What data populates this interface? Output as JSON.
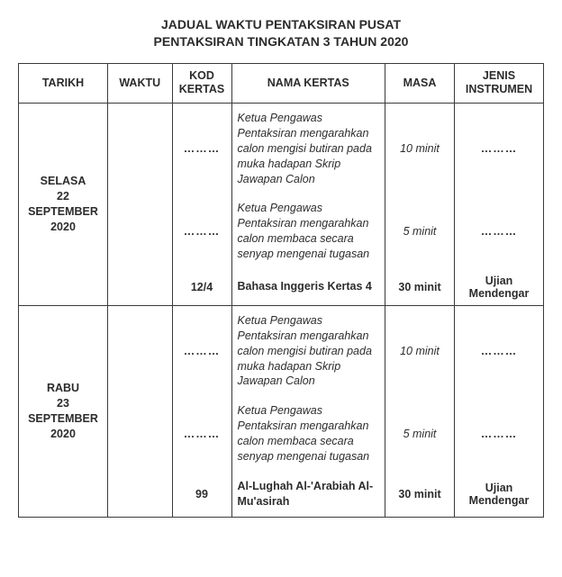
{
  "title_line1": "JADUAL WAKTU PENTAKSIRAN PUSAT",
  "title_line2": "PENTAKSIRAN TINGKATAN 3 TAHUN 2020",
  "headers": {
    "tarikh": "TARIKH",
    "waktu": "WAKTU",
    "kod": "KOD KERTAS",
    "nama": "NAMA KERTAS",
    "masa": "MASA",
    "jenis": "JENIS INSTRUMEN"
  },
  "dots": "………",
  "days": [
    {
      "tarikh": "SELASA\n22 SEPTEMBER\n2020",
      "rows": [
        {
          "kod": "………",
          "nama": "Ketua Pengawas Pentaksiran mengarahkan calon mengisi butiran pada muka hadapan Skrip Jawapan Calon",
          "masa": "10 minit",
          "jenis": "………",
          "is_desc": true
        },
        {
          "kod": "………",
          "nama": "Ketua Pengawas Pentaksiran mengarahkan calon membaca secara senyap mengenai tugasan",
          "masa": "5 minit",
          "jenis": "………",
          "is_desc": true
        },
        {
          "kod": "12/4",
          "nama": "Bahasa Inggeris Kertas 4",
          "masa": "30 minit",
          "jenis": "Ujian Mendengar",
          "is_desc": false
        }
      ]
    },
    {
      "tarikh": "RABU\n23 SEPTEMBER\n2020",
      "rows": [
        {
          "kod": "………",
          "nama": "Ketua Pengawas Pentaksiran mengarahkan calon mengisi butiran pada muka hadapan Skrip Jawapan Calon",
          "masa": "10 minit",
          "jenis": "………",
          "is_desc": true
        },
        {
          "kod": "………",
          "nama": "Ketua Pengawas Pentaksiran mengarahkan calon membaca secara senyap mengenai tugasan",
          "masa": "5 minit",
          "jenis": "………",
          "is_desc": true
        },
        {
          "kod": "99",
          "nama": "Al-Lughah Al-'Arabiah Al-Mu'asirah",
          "masa": "30 minit",
          "jenis": "Ujian Mendengar",
          "is_desc": false
        }
      ]
    }
  ]
}
